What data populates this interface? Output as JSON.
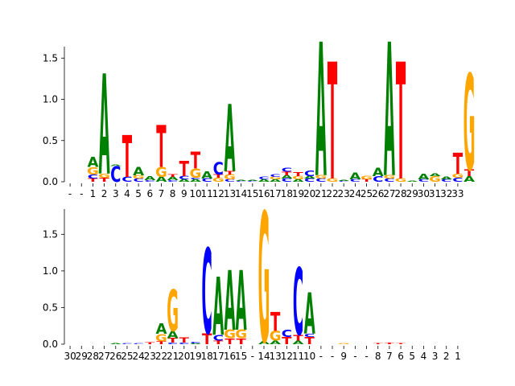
{
  "chart_data": [
    {
      "type": "sequence-logo",
      "ylim": [
        0,
        1.6
      ],
      "yticks": [
        "0.0",
        "0.5",
        "1.0",
        "1.5"
      ],
      "positions": [
        "-",
        "-",
        "1",
        "2",
        "3",
        "4",
        "5",
        "6",
        "7",
        "8",
        "9",
        "10",
        "11",
        "12",
        "13",
        "14",
        "15",
        "16",
        "17",
        "18",
        "19",
        "20",
        "21",
        "22",
        "23",
        "24",
        "25",
        "26",
        "27",
        "28",
        "29",
        "30",
        "31",
        "32",
        "33"
      ],
      "stacks": [
        [],
        [],
        [
          [
            "T",
            0.04
          ],
          [
            "C",
            0.05
          ],
          [
            "G",
            0.09
          ],
          [
            "A",
            0.12
          ]
        ],
        [
          [
            "T",
            0.05
          ],
          [
            "G",
            0.05
          ],
          [
            "A",
            1.2
          ]
        ],
        [
          [
            "C",
            0.19
          ],
          [
            "A",
            0.02
          ]
        ],
        [
          [
            "C",
            0.06
          ],
          [
            "T",
            0.5
          ]
        ],
        [
          [
            "C",
            0.04
          ],
          [
            "G",
            0.04
          ],
          [
            "A",
            0.1
          ]
        ],
        [
          [
            "C",
            0.02
          ],
          [
            "A",
            0.05
          ]
        ],
        [
          [
            "A",
            0.06
          ],
          [
            "G",
            0.12
          ],
          [
            "T",
            0.5
          ]
        ],
        [
          [
            "C",
            0.02
          ],
          [
            "A",
            0.04
          ],
          [
            "T",
            0.03
          ]
        ],
        [
          [
            "A",
            0.03
          ],
          [
            "C",
            0.04
          ],
          [
            "T",
            0.18
          ]
        ],
        [
          [
            "A",
            0.03
          ],
          [
            "C",
            0.02
          ],
          [
            "G",
            0.11
          ],
          [
            "T",
            0.2
          ]
        ],
        [
          [
            "C",
            0.04
          ],
          [
            "A",
            0.09
          ]
        ],
        [
          [
            "G",
            0.05
          ],
          [
            "T",
            0.04
          ],
          [
            "C",
            0.15
          ]
        ],
        [
          [
            "C",
            0.03
          ],
          [
            "G",
            0.06
          ],
          [
            "T",
            0.04
          ],
          [
            "A",
            0.8
          ]
        ],
        [
          [
            "C",
            0.01
          ],
          [
            "A",
            0.01
          ]
        ],
        [
          [
            "C",
            0.01
          ],
          [
            "A",
            0.01
          ]
        ],
        [
          [
            "A",
            0.03
          ],
          [
            "C",
            0.03
          ]
        ],
        [
          [
            "A",
            0.03
          ],
          [
            "G",
            0.03
          ],
          [
            "C",
            0.03
          ]
        ],
        [
          [
            "C",
            0.04
          ],
          [
            "A",
            0.04
          ],
          [
            "T",
            0.04
          ],
          [
            "C",
            0.05
          ]
        ],
        [
          [
            "A",
            0.03
          ],
          [
            "G",
            0.04
          ],
          [
            "T",
            0.05
          ]
        ],
        [
          [
            "C",
            0.04
          ],
          [
            "A",
            0.03
          ],
          [
            "C",
            0.07
          ]
        ],
        [
          [
            "C",
            0.04
          ],
          [
            "G",
            0.04
          ],
          [
            "A",
            1.6
          ]
        ],
        [
          [
            "G",
            0.04
          ],
          [
            "T",
            1.4
          ]
        ],
        [
          [
            "C",
            0.01
          ],
          [
            "A",
            0.01
          ]
        ],
        [
          [
            "C",
            0.03
          ],
          [
            "A",
            0.08
          ]
        ],
        [
          [
            "T",
            0.03
          ],
          [
            "G",
            0.04
          ]
        ],
        [
          [
            "C",
            0.07
          ],
          [
            "A",
            0.1
          ]
        ],
        [
          [
            "C",
            0.04
          ],
          [
            "G",
            0.04
          ],
          [
            "A",
            1.6
          ]
        ],
        [
          [
            "G",
            0.04
          ],
          [
            "T",
            1.4
          ]
        ],
        [
          [
            "A",
            0.01
          ]
        ],
        [
          [
            "C",
            0.03
          ],
          [
            "A",
            0.07
          ]
        ],
        [
          [
            "G",
            0.07
          ],
          [
            "A",
            0.03
          ]
        ],
        [
          [
            "C",
            0.03
          ],
          [
            "A",
            0.03
          ]
        ],
        [
          [
            "C",
            0.05
          ],
          [
            "G",
            0.05
          ],
          [
            "T",
            0.25
          ]
        ],
        [
          [
            "A",
            0.07
          ],
          [
            "T",
            0.08
          ],
          [
            "G",
            1.15
          ]
        ]
      ]
    },
    {
      "type": "sequence-logo",
      "ylim": [
        0,
        1.8
      ],
      "yticks": [
        "0.0",
        "0.5",
        "1.0",
        "1.5"
      ],
      "positions": [
        "30",
        "29",
        "28",
        "27",
        "26",
        "25",
        "24",
        "23",
        "22",
        "21",
        "20",
        "19",
        "18",
        "17",
        "16",
        "15",
        "-",
        "14",
        "13",
        "12",
        "11",
        "10",
        "-",
        "-",
        "9",
        "-",
        "-",
        "8",
        "7",
        "6",
        "5",
        "4",
        "3",
        "2",
        "1"
      ],
      "stacks": [
        [],
        [],
        [],
        [],
        [
          [
            "A",
            0.01
          ]
        ],
        [
          [
            "C",
            0.01
          ]
        ],
        [
          [
            "C",
            0.01
          ]
        ],
        [
          [
            "T",
            0.03
          ]
        ],
        [
          [
            "T",
            0.04
          ],
          [
            "G",
            0.1
          ],
          [
            "A",
            0.14
          ]
        ],
        [
          [
            "C",
            0.02
          ],
          [
            "T",
            0.06
          ],
          [
            "A",
            0.1
          ],
          [
            "G",
            0.56
          ]
        ],
        [
          [
            "C",
            0.02
          ],
          [
            "T",
            0.07
          ]
        ],
        [
          [
            "A",
            0.01
          ],
          [
            "C",
            0.02
          ]
        ],
        [
          [
            "T",
            0.15
          ],
          [
            "C",
            1.15
          ]
        ],
        [
          [
            "T",
            0.05
          ],
          [
            "C",
            0.08
          ],
          [
            "A",
            0.78
          ]
        ],
        [
          [
            "T",
            0.08
          ],
          [
            "G",
            0.12
          ],
          [
            "A",
            0.8
          ]
        ],
        [
          [
            "T",
            0.08
          ],
          [
            "G",
            0.12
          ],
          [
            "A",
            0.8
          ]
        ],
        [],
        [
          [
            "A",
            0.04
          ],
          [
            "G",
            1.75
          ]
        ],
        [
          [
            "A",
            0.05
          ],
          [
            "G",
            0.13
          ],
          [
            "T",
            0.25
          ]
        ],
        [
          [
            "T",
            0.1
          ],
          [
            "C",
            0.1
          ]
        ],
        [
          [
            "A",
            0.05
          ],
          [
            "T",
            0.08
          ],
          [
            "C",
            0.9
          ]
        ],
        [
          [
            "T",
            0.1
          ],
          [
            "C",
            0.04
          ],
          [
            "A",
            0.56
          ]
        ],
        [],
        [],
        [
          [
            "G",
            0.01
          ]
        ],
        [],
        [],
        [
          [
            "T",
            0.01
          ]
        ],
        [
          [
            "T",
            0.02
          ]
        ],
        [
          [
            "T",
            0.01
          ]
        ],
        [],
        [],
        [],
        [],
        []
      ]
    }
  ],
  "colors": {
    "A": "#008000",
    "C": "#0000ff",
    "G": "#ffa500",
    "T": "#ff0000"
  }
}
